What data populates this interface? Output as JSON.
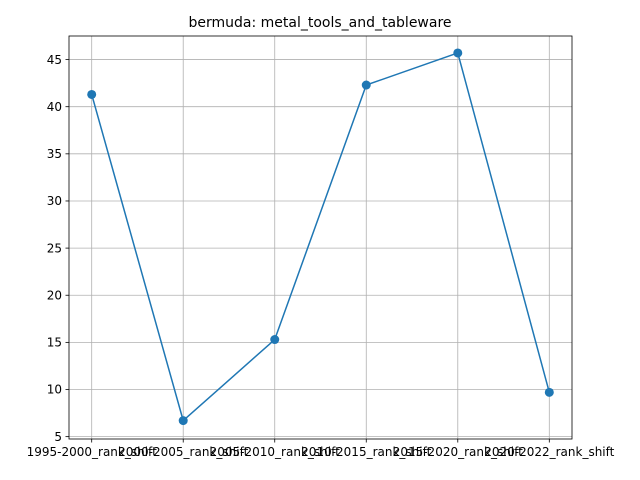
{
  "chart_data": {
    "type": "line",
    "title": "bermuda: metal_tools_and_tableware",
    "xlabel": "",
    "ylabel": "",
    "categories": [
      "1995-2000_rank_shift",
      "2000-2005_rank_shift",
      "2005-2010_rank_shift",
      "2010-2015_rank_shift",
      "2015-2020_rank_shift",
      "2020-2022_rank_shift"
    ],
    "series": [
      {
        "values": [
          41.3,
          6.7,
          15.3,
          42.3,
          45.7,
          9.7
        ],
        "color": "#1f77b4"
      }
    ],
    "yticks": [
      5,
      10,
      15,
      20,
      25,
      30,
      35,
      40,
      45
    ],
    "ylim": [
      4.75,
      47.5
    ],
    "grid": true,
    "legend": "none"
  }
}
